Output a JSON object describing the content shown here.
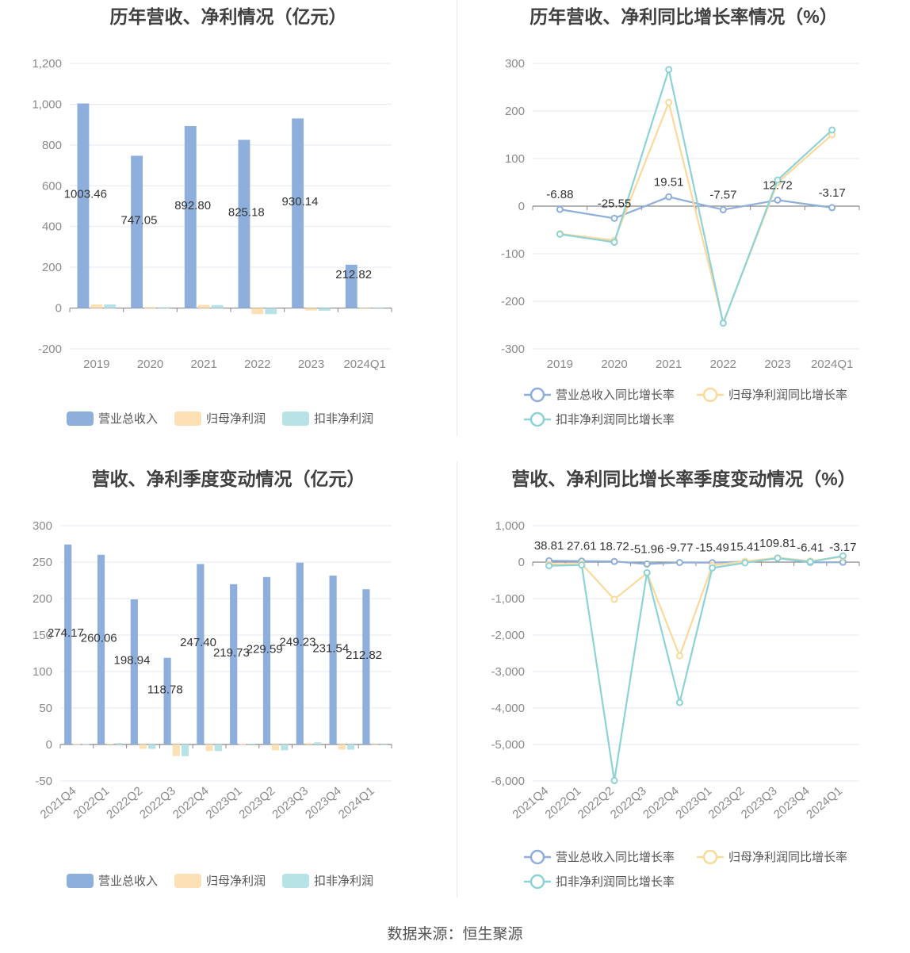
{
  "colors": {
    "revenue": "#8eaedb",
    "netprofit": "#fbe1b5",
    "deducted": "#b7e3e6",
    "revenue_line": "#8eaedb",
    "netprofit_line": "#fbd99a",
    "deducted_line": "#8dd3d6"
  },
  "source": "数据来源：恒生聚源",
  "chart_data": [
    {
      "type": "bar",
      "title": "历年营收、净利情况（亿元）",
      "categories": [
        "2019",
        "2020",
        "2021",
        "2022",
        "2023",
        "2024Q1"
      ],
      "series": [
        {
          "name": "营业总收入",
          "values": [
            1003.46,
            747.05,
            892.8,
            825.18,
            930.14,
            212.82
          ],
          "labels": [
            "1003.46",
            "747.05",
            "892.80",
            "825.18",
            "930.14",
            "212.82"
          ]
        },
        {
          "name": "归母净利润",
          "values": [
            18,
            5,
            16,
            -30,
            -12,
            0
          ]
        },
        {
          "name": "扣非净利润",
          "values": [
            18,
            4,
            15,
            -30,
            -13,
            0
          ]
        }
      ],
      "ylim": [
        -200,
        1200
      ],
      "yticks": [
        -200,
        0,
        200,
        400,
        600,
        800,
        1000,
        1200
      ],
      "yticklabels": [
        "-200",
        "0",
        "200",
        "400",
        "600",
        "800",
        "1,000",
        "1,200"
      ],
      "grid": true,
      "legend": "bottom"
    },
    {
      "type": "line",
      "title": "历年营收、净利同比增长率情况（%）",
      "categories": [
        "2019",
        "2020",
        "2021",
        "2022",
        "2023",
        "2024Q1"
      ],
      "series": [
        {
          "name": "营业总收入同比增长率",
          "values": [
            -6.88,
            -25.55,
            19.51,
            -7.57,
            12.72,
            -3.17
          ],
          "labels": [
            "-6.88",
            "-25.55",
            "19.51",
            "-7.57",
            "12.72",
            "-3.17"
          ]
        },
        {
          "name": "归母净利润同比增长率",
          "values": [
            -58,
            -72,
            218,
            -245,
            50,
            150
          ]
        },
        {
          "name": "扣非净利润同比增长率",
          "values": [
            -59,
            -76,
            287,
            -246,
            55,
            160
          ]
        }
      ],
      "ylim": [
        -300,
        300
      ],
      "yticks": [
        -300,
        -200,
        -100,
        0,
        100,
        200,
        300
      ],
      "yticklabels": [
        "-300",
        "-200",
        "-100",
        "0",
        "100",
        "200",
        "300"
      ],
      "grid": true,
      "legend": "bottom"
    },
    {
      "type": "bar",
      "title": "营收、净利季度变动情况（亿元）",
      "categories": [
        "2021Q4",
        "2022Q1",
        "2022Q2",
        "2022Q3",
        "2022Q4",
        "2023Q1",
        "2023Q2",
        "2023Q3",
        "2023Q4",
        "2024Q1"
      ],
      "series": [
        {
          "name": "营业总收入",
          "values": [
            274.17,
            260.06,
            198.94,
            118.78,
            247.4,
            219.73,
            229.59,
            249.23,
            231.54,
            212.82
          ],
          "labels": [
            "274.17",
            "260.06",
            "198.94",
            "118.78",
            "247.40",
            "219.73",
            "229.59",
            "249.23",
            "231.54",
            "212.82"
          ]
        },
        {
          "name": "归母净利润",
          "values": [
            0.5,
            1,
            -6,
            -16,
            -9,
            0.5,
            -8,
            2,
            -7,
            0
          ]
        },
        {
          "name": "扣非净利润",
          "values": [
            0.5,
            2,
            -6,
            -16,
            -9,
            1,
            -8,
            3,
            -7,
            0
          ]
        }
      ],
      "ylim": [
        -50,
        300
      ],
      "yticks": [
        -50,
        0,
        50,
        100,
        150,
        200,
        250,
        300
      ],
      "yticklabels": [
        "-50",
        "0",
        "50",
        "100",
        "150",
        "200",
        "250",
        "300"
      ],
      "grid": true,
      "legend": "bottom"
    },
    {
      "type": "line",
      "title": "营收、净利同比增长率季度变动情况（%）",
      "categories": [
        "2021Q4",
        "2022Q1",
        "2022Q2",
        "2022Q3",
        "2022Q4",
        "2023Q1",
        "2023Q2",
        "2023Q3",
        "2023Q4",
        "2024Q1"
      ],
      "series": [
        {
          "name": "营业总收入同比增长率",
          "values": [
            38.81,
            27.61,
            18.72,
            -51.96,
            -9.77,
            -15.49,
            15.41,
            109.81,
            -6.41,
            -3.17
          ],
          "labels": [
            "38.81",
            "27.61",
            "18.72",
            "-51.96",
            "-9.77",
            "-15.49",
            "15.41",
            "109.81",
            "-6.41",
            "-3.17"
          ]
        },
        {
          "name": "归母净利润同比增长率",
          "values": [
            -60,
            -50,
            -1020,
            -300,
            -2570,
            -90,
            20,
            120,
            30,
            150
          ]
        },
        {
          "name": "扣非净利润同比增长率",
          "values": [
            -100,
            -80,
            -5990,
            -290,
            -3850,
            -160,
            -20,
            110,
            10,
            170
          ]
        }
      ],
      "ylim": [
        -6000,
        1000
      ],
      "yticks": [
        -6000,
        -5000,
        -4000,
        -3000,
        -2000,
        -1000,
        0,
        1000
      ],
      "yticklabels": [
        "-6,000",
        "-5,000",
        "-4,000",
        "-3,000",
        "-2,000",
        "-1,000",
        "0",
        "1,000"
      ],
      "grid": true,
      "legend": "bottom"
    }
  ]
}
